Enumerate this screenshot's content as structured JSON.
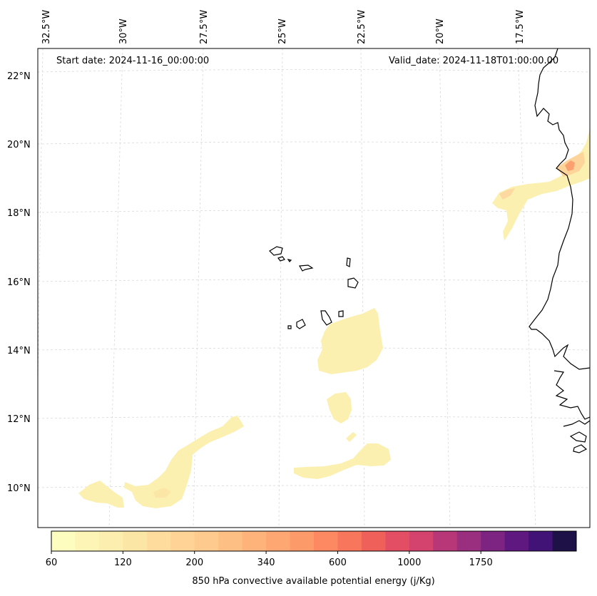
{
  "header": {
    "start_date": "Start date: 2024-11-16_00:00:00",
    "valid_date": "Valid_date: 2024-11-18T01:00:00.00"
  },
  "longitude_labels": [
    "32.5°W",
    "30°W",
    "27.5°W",
    "25°W",
    "22.5°W",
    "20°W",
    "17.5°W"
  ],
  "latitude_labels": [
    "22°N",
    "20°N",
    "18°N",
    "16°N",
    "14°N",
    "12°N",
    "10°N"
  ],
  "colorbar": {
    "title": "850 hPa convective available potential energy (j/Kg)",
    "tick_labels": [
      "60",
      "120",
      "200",
      "340",
      "600",
      "1000",
      "1750"
    ],
    "colors": [
      "#fcfdbf",
      "#fcf5b6",
      "#fceeae",
      "#fce6a6",
      "#fddc9e",
      "#fed395",
      "#feca8d",
      "#febf84",
      "#feb37b",
      "#fea773",
      "#fd9a6a",
      "#fc8961",
      "#f8765c",
      "#ef605b",
      "#e34e65",
      "#d3436e",
      "#b73779",
      "#9a2e7f",
      "#7d2482",
      "#5f187f",
      "#421377",
      "#1d1147"
    ]
  },
  "colors": {
    "coastline": "#000000",
    "grid": "#d9d9d9",
    "cape_low": "#fbf0b0",
    "cape_mid": "#fdd49a",
    "cape_high": "#fca070"
  }
}
